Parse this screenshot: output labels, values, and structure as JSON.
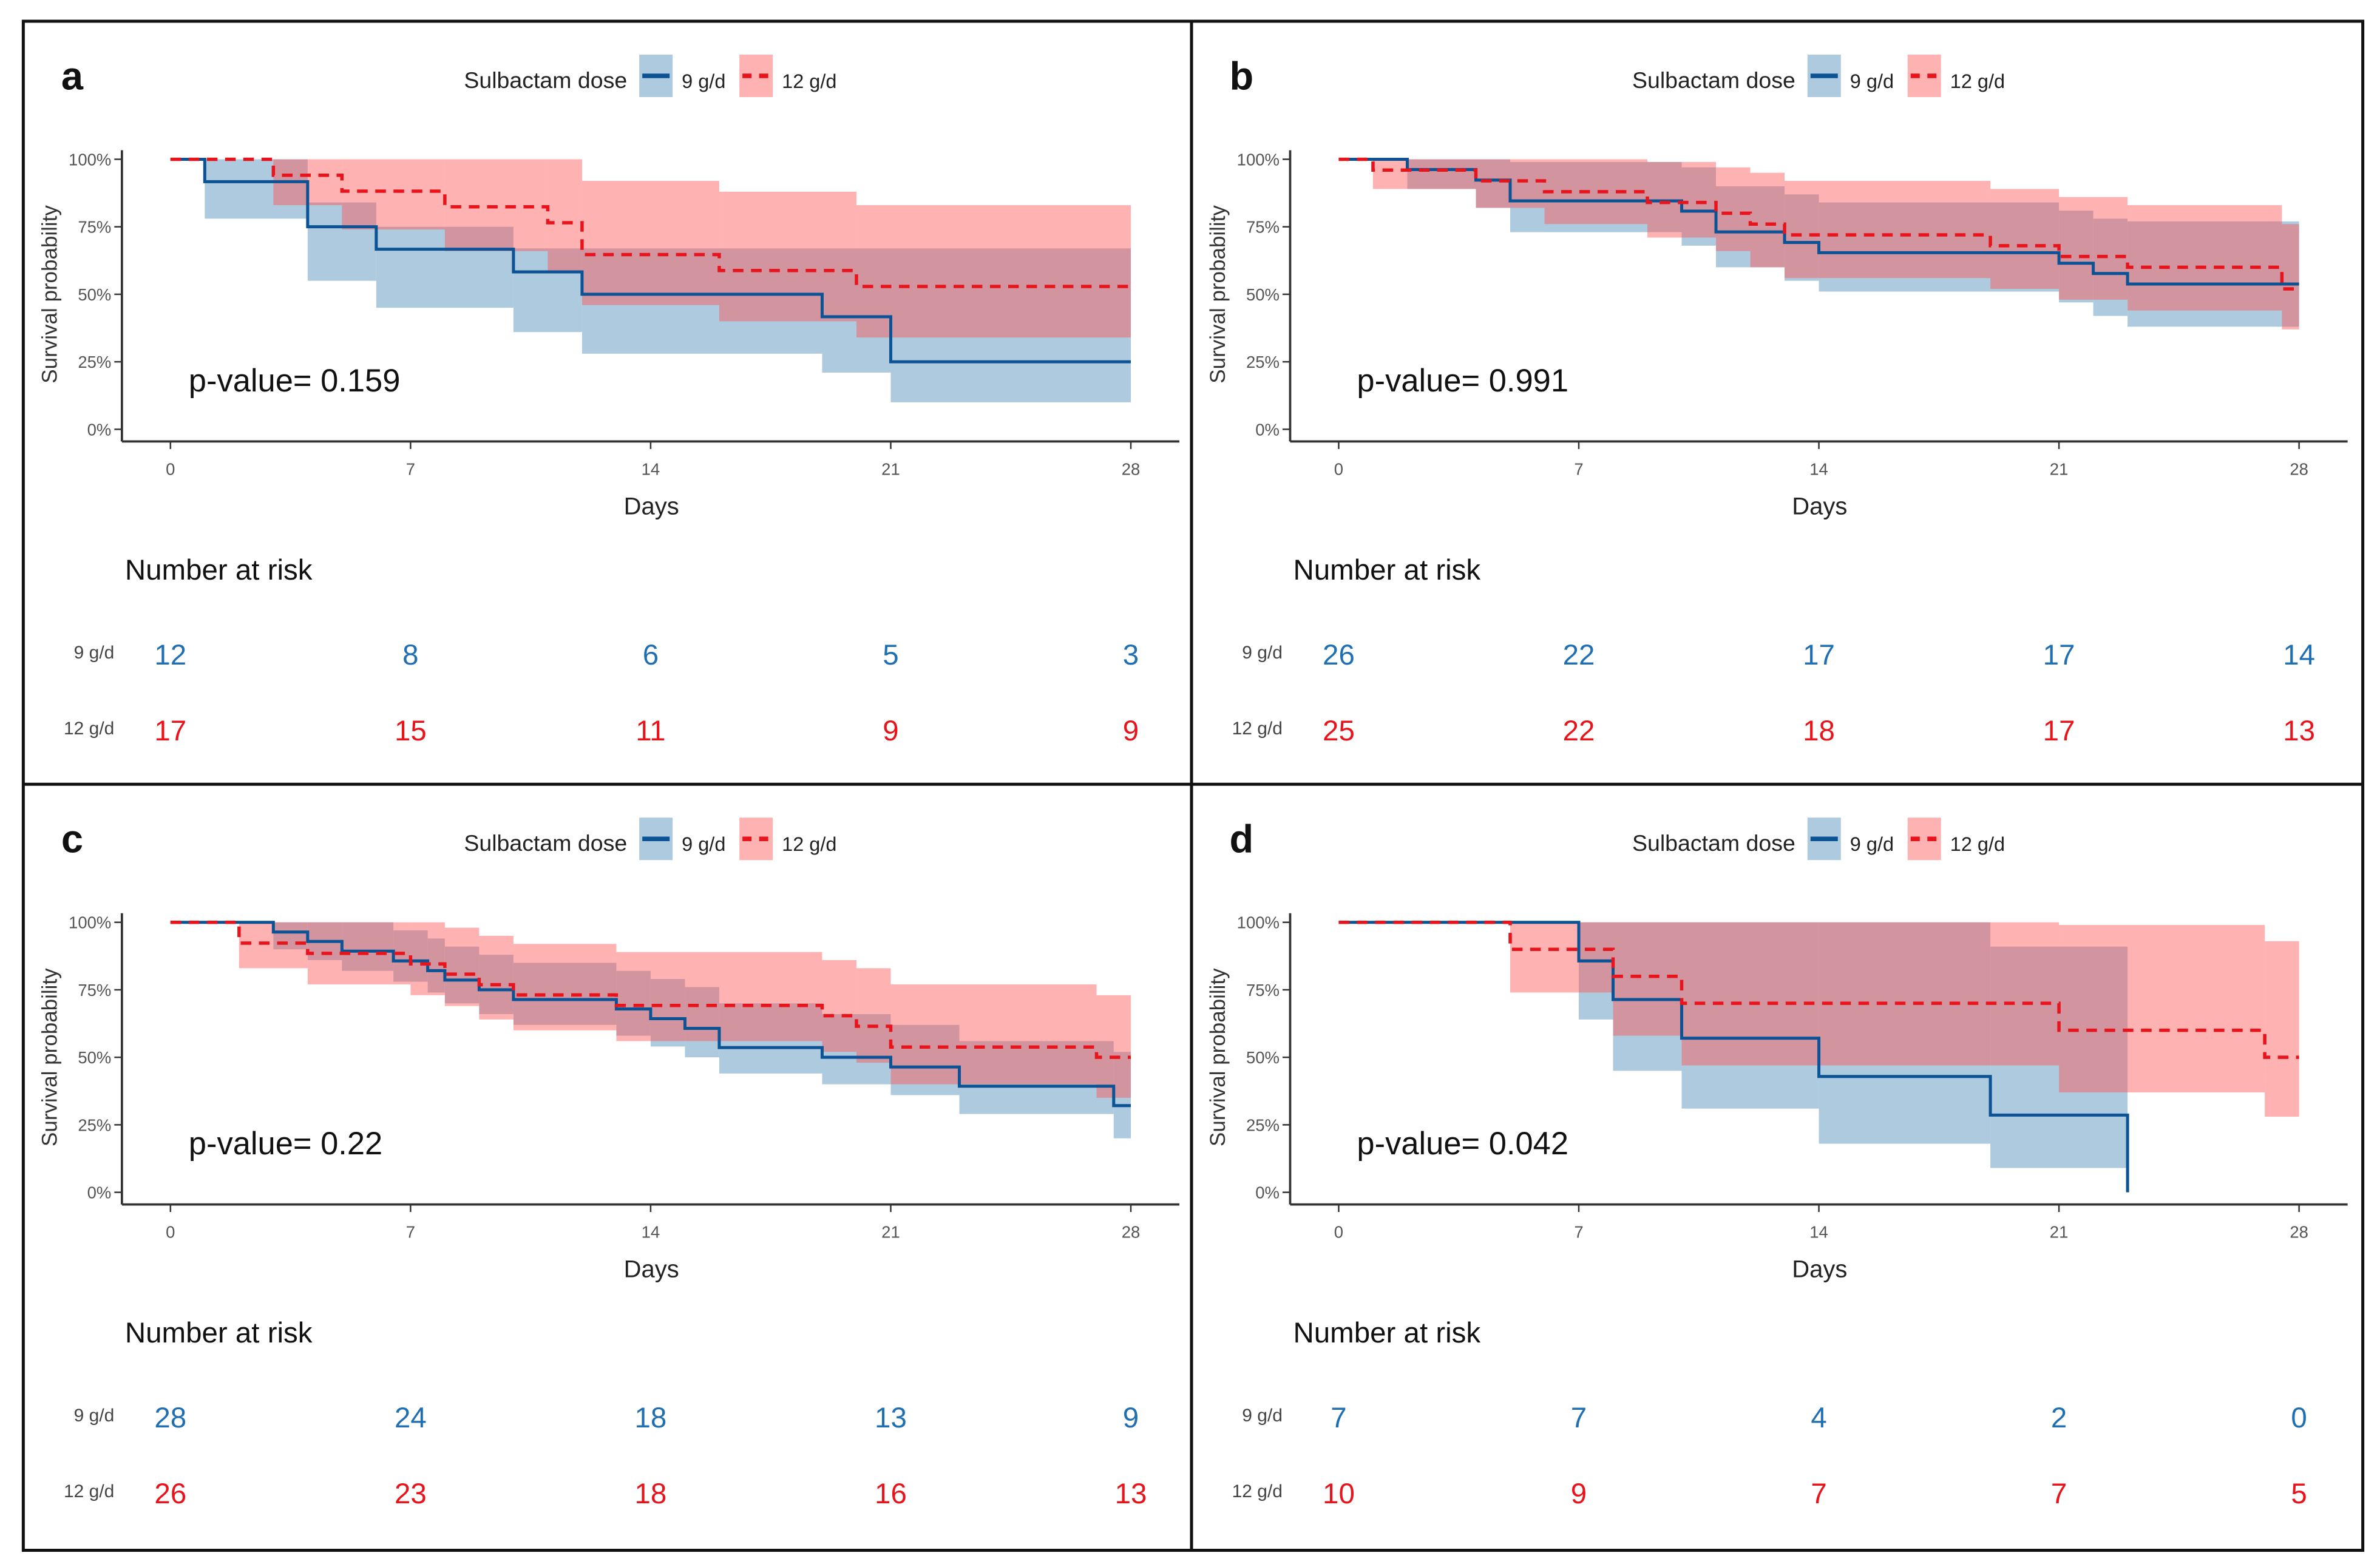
{
  "colors": {
    "9 g/d": "#0b5394",
    "12 g/d": "#e8141c",
    "band_9": "#aecadf",
    "band_12": "#ff5555"
  },
  "chart_data": [
    {
      "type": "line",
      "panel": "a",
      "pvalue": "p-value= 0.159",
      "legend_title": "Sulbactam dose",
      "legend_position": "top",
      "xlabel": "Days",
      "ylabel": "Survival probability",
      "xlim": [
        0,
        28
      ],
      "ylim": [
        0,
        1
      ],
      "xticks": [
        "0",
        "7",
        "14",
        "21",
        "28"
      ],
      "yticks": [
        "0%",
        "25%",
        "50%",
        "75%",
        "100%"
      ],
      "risk_title": "Number at risk",
      "risk_days": [
        0,
        7,
        14,
        21,
        28
      ],
      "series": [
        {
          "name": "9 g/d",
          "style": "solid",
          "end": 28,
          "time": [
            0,
            1,
            4,
            6,
            10,
            12,
            19,
            21
          ],
          "surv": [
            1,
            0.917,
            0.75,
            0.667,
            0.583,
            0.5,
            0.417,
            0.25
          ],
          "lower": [
            1,
            0.78,
            0.55,
            0.45,
            0.36,
            0.28,
            0.21,
            0.1
          ],
          "upper": [
            1,
            1,
            0.84,
            0.75,
            0.67,
            0.67,
            0.67,
            0.67
          ],
          "risk": [
            "12",
            "8",
            "6",
            "5",
            "3"
          ]
        },
        {
          "name": "12 g/d",
          "style": "dashed",
          "end": 28,
          "time": [
            0,
            3,
            5,
            8,
            11,
            12,
            16,
            20
          ],
          "surv": [
            1,
            0.941,
            0.882,
            0.824,
            0.765,
            0.647,
            0.588,
            0.529
          ],
          "lower": [
            1,
            0.83,
            0.74,
            0.66,
            0.58,
            0.46,
            0.4,
            0.34
          ],
          "upper": [
            1,
            1,
            1,
            1,
            1,
            0.92,
            0.88,
            0.83
          ],
          "risk": [
            "17",
            "15",
            "11",
            "9",
            "9"
          ]
        }
      ]
    },
    {
      "type": "line",
      "panel": "b",
      "pvalue": "p-value= 0.991",
      "legend_title": "Sulbactam dose",
      "legend_position": "top",
      "xlabel": "Days",
      "ylabel": "Survival probability",
      "xlim": [
        0,
        28
      ],
      "ylim": [
        0,
        1
      ],
      "xticks": [
        "0",
        "7",
        "14",
        "21",
        "28"
      ],
      "yticks": [
        "0%",
        "25%",
        "50%",
        "75%",
        "100%"
      ],
      "risk_title": "Number at risk",
      "risk_days": [
        0,
        7,
        14,
        21,
        28
      ],
      "series": [
        {
          "name": "9 g/d",
          "style": "solid",
          "end": 28,
          "time": [
            0,
            2,
            4,
            5,
            10,
            11,
            13,
            14,
            21,
            22,
            23
          ],
          "surv": [
            1,
            0.962,
            0.923,
            0.846,
            0.808,
            0.731,
            0.692,
            0.654,
            0.615,
            0.577,
            0.538
          ],
          "lower": [
            1,
            0.89,
            0.82,
            0.73,
            0.68,
            0.6,
            0.55,
            0.51,
            0.47,
            0.42,
            0.38
          ],
          "upper": [
            1,
            1,
            1,
            0.99,
            0.97,
            0.9,
            0.87,
            0.84,
            0.81,
            0.78,
            0.77
          ],
          "risk": [
            "26",
            "22",
            "17",
            "17",
            "14"
          ]
        },
        {
          "name": "12 g/d",
          "style": "dashed",
          "end": 28,
          "time": [
            0,
            1,
            4,
            6,
            9,
            11,
            12,
            13,
            19,
            21,
            23,
            27.5
          ],
          "surv": [
            1,
            0.96,
            0.92,
            0.88,
            0.84,
            0.8,
            0.76,
            0.72,
            0.68,
            0.64,
            0.6,
            0.52
          ],
          "lower": [
            1,
            0.89,
            0.82,
            0.76,
            0.71,
            0.66,
            0.6,
            0.56,
            0.52,
            0.48,
            0.44,
            0.37
          ],
          "upper": [
            1,
            1,
            1,
            1,
            0.99,
            0.97,
            0.95,
            0.92,
            0.89,
            0.86,
            0.83,
            0.76
          ],
          "risk": [
            "25",
            "22",
            "18",
            "17",
            "13"
          ]
        }
      ]
    },
    {
      "type": "line",
      "panel": "c",
      "pvalue": "p-value= 0.22",
      "legend_title": "Sulbactam dose",
      "legend_position": "top",
      "xlabel": "Days",
      "ylabel": "Survival probability",
      "xlim": [
        0,
        28
      ],
      "ylim": [
        0,
        1
      ],
      "xticks": [
        "0",
        "7",
        "14",
        "21",
        "28"
      ],
      "yticks": [
        "0%",
        "25%",
        "50%",
        "75%",
        "100%"
      ],
      "risk_title": "Number at risk",
      "risk_days": [
        0,
        7,
        14,
        21,
        28
      ],
      "series": [
        {
          "name": "9 g/d",
          "style": "solid",
          "end": 28,
          "time": [
            0,
            3,
            4,
            5,
            6.5,
            7.5,
            8,
            9,
            10,
            13,
            14,
            15,
            16,
            19,
            21,
            23,
            27.5
          ],
          "surv": [
            1,
            0.964,
            0.929,
            0.893,
            0.857,
            0.821,
            0.786,
            0.75,
            0.714,
            0.679,
            0.643,
            0.607,
            0.536,
            0.5,
            0.464,
            0.393,
            0.321
          ],
          "lower": [
            1,
            0.9,
            0.86,
            0.82,
            0.78,
            0.74,
            0.7,
            0.66,
            0.62,
            0.58,
            0.54,
            0.5,
            0.44,
            0.4,
            0.36,
            0.29,
            0.2
          ],
          "upper": [
            1,
            1,
            1,
            1,
            0.97,
            0.94,
            0.91,
            0.88,
            0.85,
            0.82,
            0.79,
            0.76,
            0.7,
            0.66,
            0.62,
            0.56,
            0.52
          ],
          "risk": [
            "28",
            "24",
            "18",
            "13",
            "9"
          ]
        },
        {
          "name": "12 g/d",
          "style": "dashed",
          "end": 28,
          "time": [
            0,
            2,
            4,
            7,
            8,
            9,
            10,
            13,
            19,
            20,
            21,
            27
          ],
          "surv": [
            1,
            0.923,
            0.885,
            0.846,
            0.808,
            0.769,
            0.731,
            0.692,
            0.654,
            0.615,
            0.538,
            0.5
          ],
          "lower": [
            1,
            0.83,
            0.77,
            0.73,
            0.69,
            0.64,
            0.6,
            0.56,
            0.52,
            0.48,
            0.4,
            0.35
          ],
          "upper": [
            1,
            1,
            1,
            1,
            0.98,
            0.95,
            0.92,
            0.89,
            0.86,
            0.83,
            0.77,
            0.73
          ],
          "risk": [
            "26",
            "23",
            "18",
            "16",
            "13"
          ]
        }
      ]
    },
    {
      "type": "line",
      "panel": "d",
      "pvalue": "p-value= 0.042",
      "legend_title": "Sulbactam dose",
      "legend_position": "top",
      "xlabel": "Days",
      "ylabel": "Survival probability",
      "xlim": [
        0,
        28
      ],
      "ylim": [
        0,
        1
      ],
      "xticks": [
        "0",
        "7",
        "14",
        "21",
        "28"
      ],
      "yticks": [
        "0%",
        "25%",
        "50%",
        "75%",
        "100%"
      ],
      "risk_title": "Number at risk",
      "risk_days": [
        0,
        7,
        14,
        21,
        28
      ],
      "series": [
        {
          "name": "9 g/d",
          "style": "solid",
          "end": 23,
          "time": [
            0,
            7,
            8,
            10,
            14,
            19,
            23
          ],
          "surv": [
            1,
            0.857,
            0.714,
            0.571,
            0.429,
            0.286,
            0
          ],
          "lower": [
            1,
            0.64,
            0.45,
            0.31,
            0.18,
            0.09,
            0
          ],
          "upper": [
            1,
            1,
            1,
            1,
            1,
            0.91,
            0
          ],
          "risk": [
            "7",
            "7",
            "4",
            "2",
            "0"
          ]
        },
        {
          "name": "12 g/d",
          "style": "dashed",
          "end": 28,
          "time": [
            0,
            5,
            8,
            10,
            21,
            27
          ],
          "surv": [
            1,
            0.9,
            0.8,
            0.7,
            0.6,
            0.5
          ],
          "lower": [
            1,
            0.74,
            0.58,
            0.47,
            0.37,
            0.28
          ],
          "upper": [
            1,
            1,
            1,
            1,
            0.99,
            0.93
          ],
          "risk": [
            "10",
            "9",
            "7",
            "7",
            "5"
          ]
        }
      ]
    }
  ]
}
